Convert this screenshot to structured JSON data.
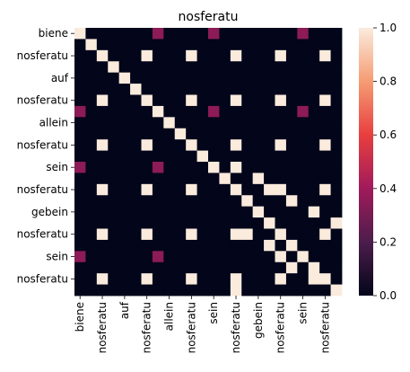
{
  "chart_data": {
    "type": "heatmap",
    "title": "nosferatu",
    "labels": [
      "biene",
      "",
      "nosferatu",
      "",
      "auf",
      "",
      "nosferatu",
      "",
      "allein",
      "",
      "nosferatu",
      "",
      "sein",
      "",
      "nosferatu",
      "",
      "gebein",
      "",
      "nosferatu",
      "",
      "sein",
      "",
      "nosferatu",
      ""
    ],
    "xlabels": [
      "biene",
      "",
      "nosferatu",
      "",
      "auf",
      "",
      "nosferatu",
      "",
      "allein",
      "",
      "nosferatu",
      "",
      "sein",
      "",
      "nosferatu",
      "",
      "gebein",
      "",
      "nosferatu",
      "",
      "sein",
      "",
      "nosferatu",
      ""
    ],
    "matrix": [
      [
        1,
        0,
        0,
        0,
        0,
        0,
        0,
        0,
        0,
        0,
        0,
        0,
        0,
        0,
        0,
        0,
        0,
        0,
        0,
        0,
        0,
        0,
        0,
        0
      ],
      [
        0,
        1,
        0,
        0,
        0,
        0,
        0,
        0,
        0,
        0,
        0,
        0,
        0,
        0,
        0,
        0,
        0,
        0,
        0,
        0,
        0,
        0,
        0,
        0
      ],
      [
        0,
        0,
        1,
        0,
        0,
        0,
        1,
        0,
        0,
        0,
        1,
        0,
        0,
        0,
        1,
        0,
        0,
        0,
        1,
        0,
        0,
        0,
        1,
        0
      ],
      [
        0,
        0,
        0,
        1,
        0,
        0,
        0,
        0,
        0,
        0,
        0,
        0,
        0,
        0,
        0,
        0,
        0,
        0,
        0,
        0,
        0,
        0,
        0,
        0
      ],
      [
        0,
        0,
        0,
        0,
        1,
        0,
        0,
        0,
        0,
        0,
        0,
        0,
        0,
        0,
        0,
        0,
        0,
        0,
        0,
        0,
        0,
        0,
        0,
        0
      ],
      [
        0,
        0,
        0,
        0,
        0,
        1,
        0,
        0,
        0,
        0,
        0,
        0,
        0,
        0,
        0,
        0,
        0,
        0,
        0,
        0,
        0,
        0,
        0,
        0
      ],
      [
        0,
        0,
        1,
        0,
        0,
        0,
        1,
        0,
        0,
        0,
        1,
        0,
        0,
        0,
        1,
        0,
        0,
        0,
        1,
        0,
        0,
        0,
        1,
        0
      ],
      [
        0,
        0,
        0,
        0,
        0,
        0,
        0,
        1,
        0,
        0,
        0,
        0,
        0,
        0,
        0,
        0,
        0,
        0,
        0,
        0,
        0,
        0,
        0,
        0
      ],
      [
        0,
        0,
        0,
        0,
        0,
        0,
        0,
        0,
        1,
        0,
        0,
        0,
        0,
        0,
        0,
        0,
        0,
        0,
        0,
        0,
        0,
        0,
        0,
        0
      ],
      [
        0,
        0,
        0,
        0,
        0,
        0,
        0,
        0,
        0,
        1,
        0,
        0,
        0,
        0,
        0,
        0,
        0,
        0,
        0,
        0,
        0,
        0,
        0,
        0
      ],
      [
        0,
        0,
        1,
        0,
        0,
        0,
        1,
        0,
        0,
        0,
        1,
        0,
        0,
        0,
        1,
        0,
        0,
        0,
        1,
        0,
        0,
        0,
        1,
        0
      ],
      [
        0,
        0,
        0,
        0,
        0,
        0,
        0,
        0,
        0,
        0,
        0,
        1,
        0,
        0,
        0,
        0,
        0,
        0,
        0,
        0,
        0,
        0,
        0,
        0
      ],
      [
        0,
        0,
        0,
        0,
        0,
        0,
        0,
        0,
        0,
        0,
        0,
        0,
        1,
        0,
        0,
        0,
        0,
        0,
        0,
        0,
        0,
        0,
        0,
        0
      ],
      [
        0,
        0,
        0,
        0,
        0,
        0,
        0,
        0,
        0,
        0,
        0,
        0,
        0,
        1,
        0,
        0,
        0,
        0,
        0,
        0,
        0,
        0,
        0,
        0
      ],
      [
        0,
        0,
        1,
        0,
        0,
        0,
        1,
        0,
        0,
        0,
        1,
        0,
        0,
        0,
        1,
        0,
        0,
        0,
        1,
        0,
        0,
        0,
        1,
        0
      ],
      [
        0,
        0,
        0,
        0,
        0,
        0,
        0,
        0,
        0,
        0,
        0,
        0,
        0,
        0,
        0,
        1,
        0,
        0,
        0,
        0,
        0,
        0,
        0,
        0
      ],
      [
        0,
        0,
        0,
        0,
        0,
        0,
        0,
        0,
        0,
        0,
        0,
        0,
        0,
        0,
        0,
        0,
        1,
        0,
        0,
        0,
        0,
        0,
        0,
        0
      ],
      [
        0,
        0,
        0,
        0,
        0,
        0,
        0,
        0,
        0,
        0,
        0,
        0,
        0,
        0,
        0,
        0,
        0,
        1,
        0,
        0,
        0,
        0,
        0,
        0
      ],
      [
        0,
        0,
        1,
        0,
        0,
        0,
        1,
        0,
        0,
        0,
        1,
        0,
        0,
        0,
        1,
        0,
        0,
        0,
        1,
        0,
        0,
        0,
        1,
        0
      ],
      [
        0,
        0,
        0,
        0,
        0,
        0,
        0,
        0,
        0,
        0,
        0,
        0,
        0,
        0,
        0,
        0,
        0,
        0,
        0,
        1,
        0,
        0,
        0,
        0
      ],
      [
        0,
        0,
        0,
        0,
        0,
        0,
        0,
        0,
        0,
        0,
        0,
        0,
        0,
        0,
        0,
        0,
        0,
        0,
        0,
        0,
        1,
        0,
        0,
        0
      ],
      [
        0,
        0,
        0,
        0,
        0,
        0,
        0,
        0,
        0,
        0,
        0,
        0,
        0,
        0,
        0,
        0,
        0,
        0,
        0,
        0,
        0,
        1,
        0,
        0
      ],
      [
        0,
        0,
        1,
        0,
        0,
        0,
        1,
        0,
        0,
        0,
        1,
        0,
        0,
        0,
        1,
        0,
        0,
        0,
        1,
        0,
        0,
        0,
        1,
        0
      ],
      [
        0,
        0,
        0,
        0,
        0,
        0,
        0,
        0,
        0,
        0,
        0,
        0,
        0,
        0,
        0,
        0,
        0,
        0,
        0,
        0,
        0,
        0,
        0,
        1
      ]
    ],
    "overrides": [
      {
        "r": 0,
        "c": 7,
        "v": 0.35
      },
      {
        "r": 0,
        "c": 12,
        "v": 0.35
      },
      {
        "r": 0,
        "c": 20,
        "v": 0.35
      },
      {
        "r": 7,
        "c": 0,
        "v": 0.35
      },
      {
        "r": 7,
        "c": 12,
        "v": 0.35
      },
      {
        "r": 7,
        "c": 20,
        "v": 0.35
      },
      {
        "r": 12,
        "c": 0,
        "v": 0.35
      },
      {
        "r": 12,
        "c": 7,
        "v": 0.35
      },
      {
        "r": 12,
        "c": 14,
        "v": 1
      },
      {
        "r": 13,
        "c": 16,
        "v": 1
      },
      {
        "r": 14,
        "c": 17,
        "v": 1
      },
      {
        "r": 15,
        "c": 19,
        "v": 1
      },
      {
        "r": 16,
        "c": 21,
        "v": 1
      },
      {
        "r": 17,
        "c": 23,
        "v": 1
      },
      {
        "r": 18,
        "c": 15,
        "v": 1
      },
      {
        "r": 19,
        "c": 17,
        "v": 1
      },
      {
        "r": 20,
        "c": 0,
        "v": 0.35
      },
      {
        "r": 20,
        "c": 7,
        "v": 0.35
      },
      {
        "r": 20,
        "c": 18,
        "v": 1
      },
      {
        "r": 21,
        "c": 19,
        "v": 1
      },
      {
        "r": 22,
        "c": 21,
        "v": 1
      },
      {
        "r": 23,
        "c": 14,
        "v": 1
      }
    ],
    "colorbar": {
      "min": 0,
      "max": 1,
      "ticks": [
        "0.0",
        "0.2",
        "0.4",
        "0.6",
        "0.8",
        "1.0"
      ],
      "stops": [
        "#03051a",
        "#4c1d4b",
        "#a11a5b",
        "#e83f3f",
        "#f69c73",
        "#faebdd"
      ]
    }
  }
}
